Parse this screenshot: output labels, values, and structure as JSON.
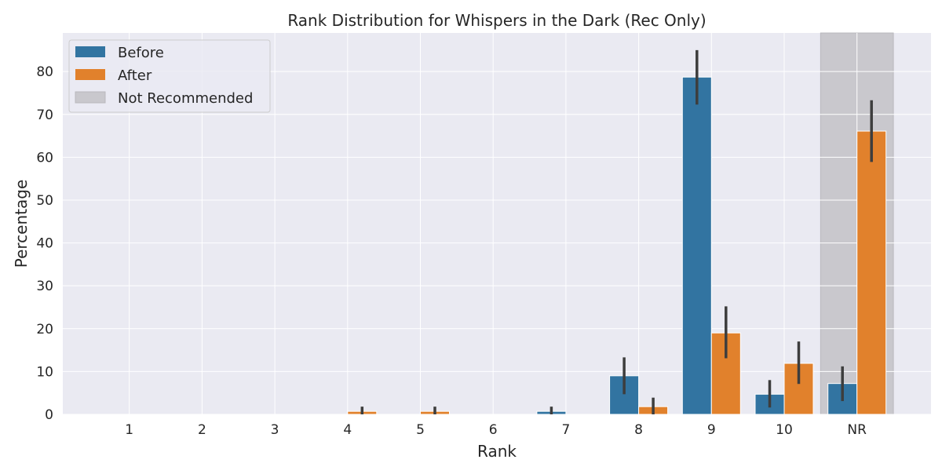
{
  "chart_data": {
    "type": "bar",
    "title": "Rank Distribution for Whispers in the Dark (Rec Only)",
    "xlabel": "Rank",
    "ylabel": "Percentage",
    "categories": [
      "1",
      "2",
      "3",
      "4",
      "5",
      "6",
      "7",
      "8",
      "9",
      "10",
      "NR"
    ],
    "ylim": [
      0,
      89
    ],
    "yticks": [
      0,
      10,
      20,
      30,
      40,
      50,
      60,
      70,
      80
    ],
    "grid": true,
    "legend_position": "upper-left",
    "highlight": {
      "category": "NR",
      "label": "Not Recommended",
      "color": "#c9c8cd"
    },
    "series": [
      {
        "name": "Before",
        "color": "#3274a1",
        "values": [
          0,
          0,
          0,
          0,
          0,
          0,
          0.7,
          9.0,
          78.7,
          4.7,
          7.2
        ],
        "ci_low": [
          0,
          0,
          0,
          0,
          0,
          0,
          0,
          4.7,
          72.3,
          1.6,
          3.1
        ],
        "ci_high": [
          0,
          0,
          0,
          0,
          0,
          0,
          1.8,
          13.3,
          85.0,
          8.0,
          11.2
        ]
      },
      {
        "name": "After",
        "color": "#e1812c",
        "values": [
          0,
          0,
          0,
          0.7,
          0.7,
          0,
          0,
          1.8,
          19.0,
          11.9,
          66.1
        ],
        "ci_low": [
          0,
          0,
          0,
          0,
          0,
          0,
          0,
          0,
          13.1,
          7.1,
          58.9
        ],
        "ci_high": [
          0,
          0,
          0,
          1.8,
          1.8,
          0,
          0,
          3.9,
          25.2,
          17.0,
          73.3
        ]
      }
    ]
  }
}
